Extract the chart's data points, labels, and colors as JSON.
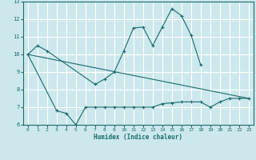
{
  "xlabel": "Humidex (Indice chaleur)",
  "ylabel": "",
  "background_color": "#cce8ed",
  "grid_color": "#ffffff",
  "line_color": "#1a6b6b",
  "xlim": [
    -0.5,
    23.5
  ],
  "ylim": [
    6,
    13
  ],
  "yticks": [
    6,
    7,
    8,
    9,
    10,
    11,
    12,
    13
  ],
  "xticks": [
    0,
    1,
    2,
    3,
    4,
    5,
    6,
    7,
    8,
    9,
    10,
    11,
    12,
    13,
    14,
    15,
    16,
    17,
    18,
    19,
    20,
    21,
    22,
    23
  ],
  "line1_x": [
    0,
    1,
    2,
    7,
    8,
    9,
    10,
    11,
    12,
    13,
    14,
    15,
    16,
    17,
    18
  ],
  "line1_y": [
    10.0,
    10.5,
    10.2,
    8.3,
    8.6,
    9.0,
    10.2,
    11.5,
    11.55,
    10.5,
    11.55,
    12.6,
    12.2,
    11.1,
    9.4
  ],
  "line2_x": [
    0,
    3,
    4,
    5,
    6,
    7,
    8,
    9,
    10,
    11,
    12,
    13,
    14,
    15,
    16,
    17,
    18,
    19,
    20,
    21,
    22,
    23
  ],
  "line2_y": [
    10.0,
    6.8,
    6.65,
    6.0,
    7.0,
    7.0,
    7.0,
    7.0,
    7.0,
    7.0,
    7.0,
    7.0,
    7.2,
    7.25,
    7.3,
    7.3,
    7.3,
    7.0,
    7.3,
    7.5,
    7.5,
    7.5
  ],
  "line3_x": [
    0,
    23
  ],
  "line3_y": [
    10.0,
    7.5
  ]
}
